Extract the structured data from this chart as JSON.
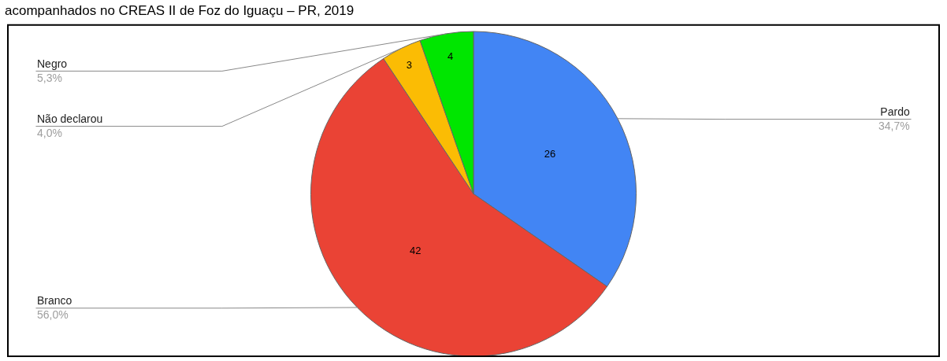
{
  "chart_data": {
    "type": "pie",
    "title": "acompanhados no CREAS II de Foz do Iguaçu – PR, 2019",
    "categories": [
      "Pardo",
      "Branco",
      "Não declarou",
      "Negro"
    ],
    "values": [
      26,
      42,
      3,
      4
    ],
    "colors": [
      "#4285f4",
      "#ea4335",
      "#fbbc04",
      "#00e600"
    ],
    "data_labels": true,
    "annotations": [
      "34,7%",
      "56,0%",
      "4,0%",
      "5,3%"
    ],
    "legend": false
  }
}
